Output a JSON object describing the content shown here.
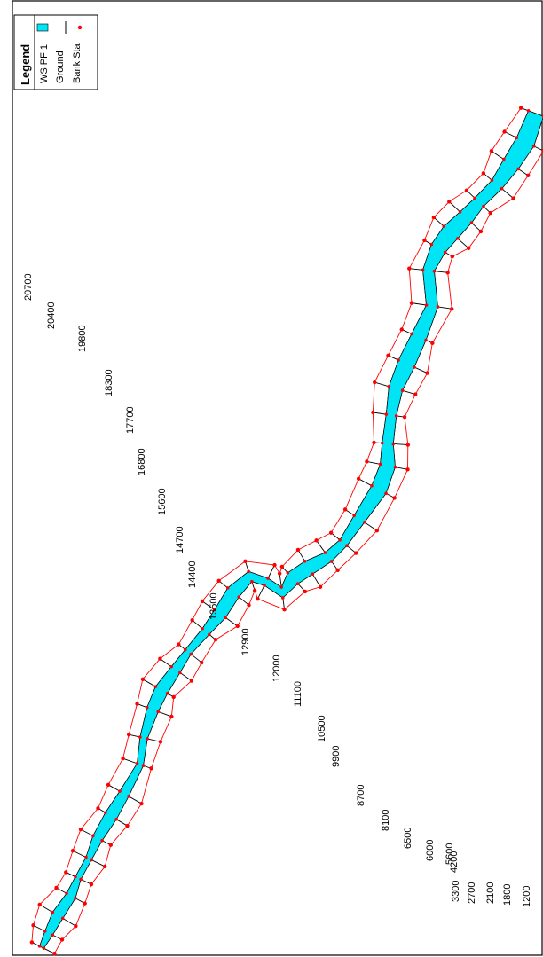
{
  "legend": {
    "title": "Legend",
    "items": [
      {
        "label": "WS PF 1",
        "symbol": "water-swatch"
      },
      {
        "label": "Ground",
        "symbol": "ground-line"
      },
      {
        "label": "Bank Sta",
        "symbol": "bank-dot"
      }
    ]
  },
  "stations": [
    "20700",
    "20400",
    "19800",
    "18300",
    "17700",
    "16800",
    "15600",
    "14700",
    "14400",
    "13500",
    "12900",
    "12000",
    "11100",
    "10500",
    "9900",
    "8700",
    "8100",
    "6500",
    "6000",
    "5600",
    "4200",
    "3300",
    "2700",
    "2100",
    "1800",
    "1200"
  ],
  "colors": {
    "water": "#00e5f5",
    "ground": "#000000",
    "bank_line": "#ff0000",
    "bank_dot": "#ff0000",
    "frame": "#000000",
    "background": "#ffffff"
  }
}
